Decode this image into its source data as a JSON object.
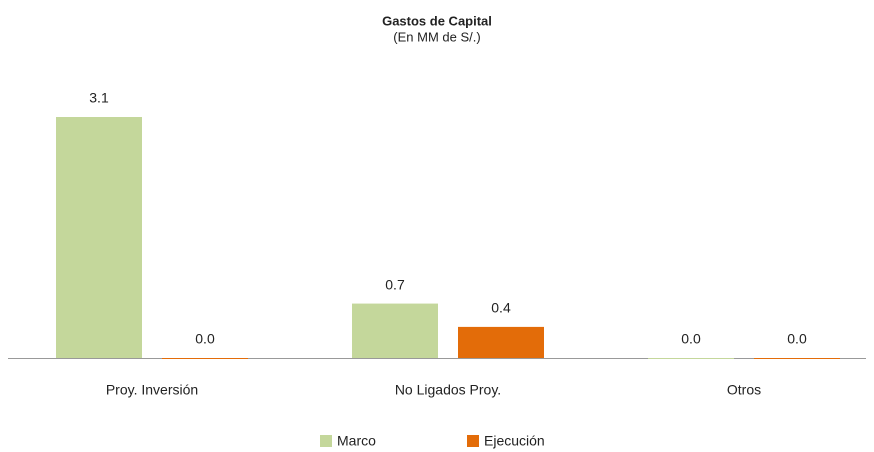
{
  "chart_data": {
    "type": "bar",
    "title": "Gastos de Capital",
    "subtitle": "(En MM de S/.)",
    "categories": [
      "Proy. Inversión",
      "No Ligados Proy.",
      "Otros"
    ],
    "series": [
      {
        "name": "Marco",
        "color": "#c4d79b",
        "values": [
          3.1,
          0.7,
          0
        ],
        "value_labels": [
          "3.1",
          "0.7",
          "0.0"
        ]
      },
      {
        "name": "Ejecución",
        "color": "#e36c09",
        "values": [
          0,
          0.4,
          0
        ],
        "value_labels": [
          "0.0",
          "0.4",
          "0.0"
        ]
      }
    ]
  }
}
